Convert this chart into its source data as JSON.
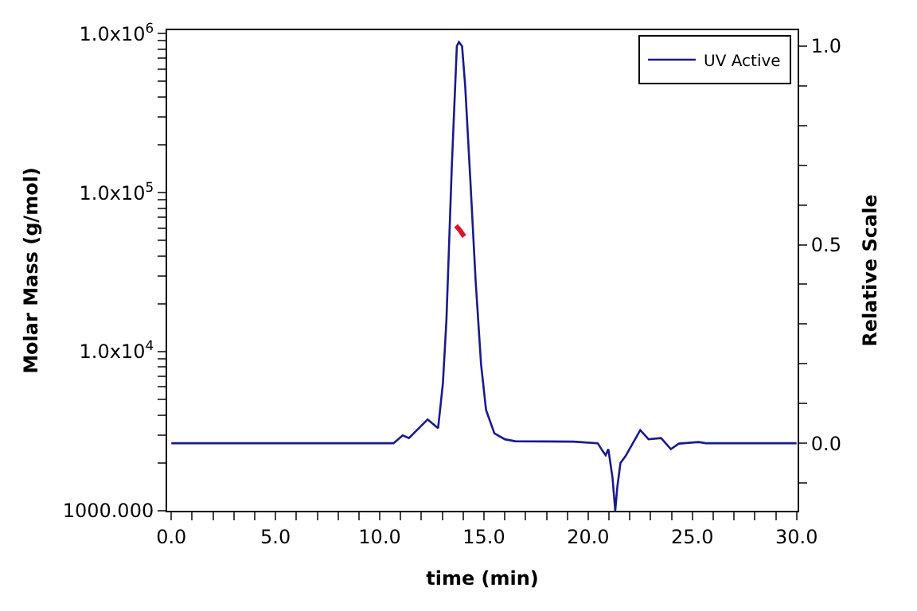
{
  "chart_data": {
    "type": "line",
    "xlabel": "time (min)",
    "ylabel": "Molar Mass (g/mol)",
    "y2label": "Relative Scale",
    "xlim": [
      -0.2,
      30.05
    ],
    "xticks": [
      {
        "value": 0,
        "label": "0.0"
      },
      {
        "value": 1,
        "label": null
      },
      {
        "value": 2,
        "label": null
      },
      {
        "value": 3,
        "label": null
      },
      {
        "value": 4,
        "label": null
      },
      {
        "value": 5,
        "label": "5.0"
      },
      {
        "value": 6,
        "label": null
      },
      {
        "value": 7,
        "label": null
      },
      {
        "value": 8,
        "label": null
      },
      {
        "value": 9,
        "label": null
      },
      {
        "value": 10,
        "label": "10.0"
      },
      {
        "value": 11,
        "label": null
      },
      {
        "value": 12,
        "label": null
      },
      {
        "value": 13,
        "label": null
      },
      {
        "value": 14,
        "label": null
      },
      {
        "value": 15,
        "label": "15.0"
      },
      {
        "value": 16,
        "label": null
      },
      {
        "value": 17,
        "label": null
      },
      {
        "value": 18,
        "label": null
      },
      {
        "value": 19,
        "label": null
      },
      {
        "value": 20,
        "label": "20.0"
      },
      {
        "value": 21,
        "label": null
      },
      {
        "value": 22,
        "label": null
      },
      {
        "value": 23,
        "label": null
      },
      {
        "value": 24,
        "label": null
      },
      {
        "value": 25,
        "label": "25.0"
      },
      {
        "value": 26,
        "label": null
      },
      {
        "value": 27,
        "label": null
      },
      {
        "value": 28,
        "label": null
      },
      {
        "value": 29,
        "label": null
      },
      {
        "value": 30,
        "label": "30.0"
      }
    ],
    "log": "y",
    "ylim": [
      1000,
      1050000
    ],
    "yticks": [
      {
        "value": 1000,
        "label": "1000.000"
      },
      {
        "value": 2000,
        "label": null
      },
      {
        "value": 3000,
        "label": null
      },
      {
        "value": 4000,
        "label": null
      },
      {
        "value": 5000,
        "label": null
      },
      {
        "value": 6000,
        "label": null
      },
      {
        "value": 7000,
        "label": null
      },
      {
        "value": 8000,
        "label": null
      },
      {
        "value": 9000,
        "label": null
      },
      {
        "value": 10000,
        "label": "1.0x10$^{4}$"
      },
      {
        "value": 20000,
        "label": null
      },
      {
        "value": 30000,
        "label": null
      },
      {
        "value": 40000,
        "label": null
      },
      {
        "value": 50000,
        "label": null
      },
      {
        "value": 60000,
        "label": null
      },
      {
        "value": 70000,
        "label": null
      },
      {
        "value": 80000,
        "label": null
      },
      {
        "value": 90000,
        "label": null
      },
      {
        "value": 100000,
        "label": "1.0x10$^{5}$"
      },
      {
        "value": 200000,
        "label": null
      },
      {
        "value": 300000,
        "label": null
      },
      {
        "value": 400000,
        "label": null
      },
      {
        "value": 500000,
        "label": null
      },
      {
        "value": 600000,
        "label": null
      },
      {
        "value": 700000,
        "label": null
      },
      {
        "value": 800000,
        "label": null
      },
      {
        "value": 900000,
        "label": null
      },
      {
        "value": 1000000,
        "label": "1.0x10$^{6}$"
      }
    ],
    "y2lim": [
      -0.17,
      1.04
    ],
    "y2ticks": [
      {
        "value": -0.1,
        "label": null
      },
      {
        "value": 0,
        "label": "0.0"
      },
      {
        "value": 0.1,
        "label": null
      },
      {
        "value": 0.2,
        "label": null
      },
      {
        "value": 0.3,
        "label": null
      },
      {
        "value": 0.4,
        "label": null
      },
      {
        "value": 0.5,
        "label": "0.5"
      },
      {
        "value": 0.6,
        "label": null
      },
      {
        "value": 0.7,
        "label": null
      },
      {
        "value": 0.8,
        "label": null
      },
      {
        "value": 0.9,
        "label": null
      },
      {
        "value": 1.0,
        "label": "1.0"
      }
    ],
    "legend": "top right",
    "marker": "none",
    "line_style": "solid",
    "series": [
      {
        "name": "UV Active",
        "color": "#1a1a8c",
        "axis": "y2",
        "x": [
          0,
          10.66,
          11.1,
          11.4,
          12.3,
          12.8,
          13.03,
          13.2,
          13.46,
          13.7,
          13.8,
          13.95,
          14.1,
          14.35,
          14.6,
          14.86,
          15.1,
          15.5,
          16.0,
          16.5,
          19.3,
          20.46,
          20.7,
          20.84,
          20.97,
          21.17,
          21.3,
          21.4,
          21.55,
          21.8,
          22.5,
          22.9,
          23.5,
          23.97,
          24.35,
          25.3,
          25.65,
          30
        ],
        "values": [
          0,
          0,
          0.02,
          0.013,
          0.06,
          0.038,
          0.15,
          0.31,
          0.7,
          1.0,
          1.01,
          1.0,
          0.9,
          0.66,
          0.41,
          0.2,
          0.084,
          0.025,
          0.01,
          0.005,
          0.004,
          0,
          -0.02,
          -0.03,
          -0.015,
          -0.087,
          -0.17,
          -0.11,
          -0.05,
          -0.032,
          0.033,
          0.01,
          0.013,
          -0.015,
          -0.001,
          0.003,
          0,
          0
        ]
      },
      {
        "color": "#e0102a",
        "x": [
          13.66,
          13.85,
          14.05
        ],
        "values": [
          62000,
          58000,
          53000
        ]
      }
    ]
  }
}
